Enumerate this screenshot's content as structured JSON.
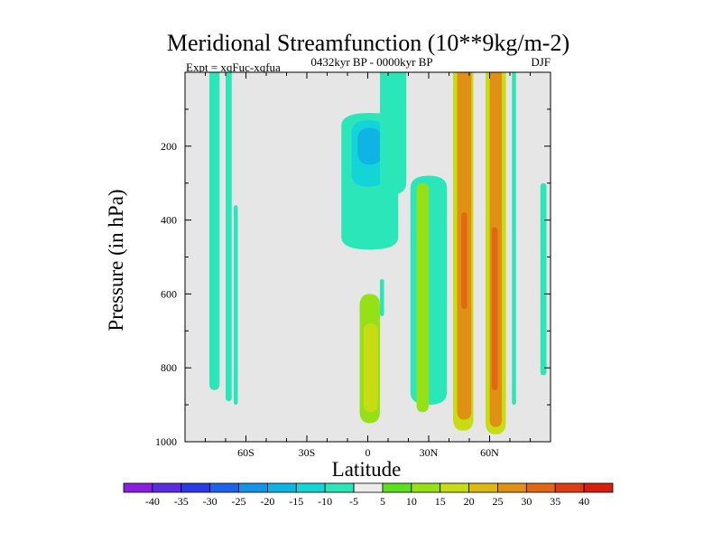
{
  "chart_data": {
    "type": "contour",
    "title": "Meridional Streamfunction (10**9kg/m-2)",
    "subtitle": "0432kyr BP - 0000kyr BP",
    "left_label": "Expt = xqFuc-xqfua",
    "right_label": "DJF",
    "xlabel": "Latitude",
    "ylabel": "Pressure (in hPa)",
    "xlim": [
      -90,
      90
    ],
    "ylim": [
      0,
      1000
    ],
    "y_inverted": true,
    "x_ticks": [
      {
        "value": -60,
        "label": "60S"
      },
      {
        "value": -30,
        "label": "30S"
      },
      {
        "value": 0,
        "label": "0"
      },
      {
        "value": 30,
        "label": "30N"
      },
      {
        "value": 60,
        "label": "60N"
      }
    ],
    "y_ticks": [
      {
        "value": 200,
        "label": "200"
      },
      {
        "value": 400,
        "label": "400"
      },
      {
        "value": 600,
        "label": "600"
      },
      {
        "value": 800,
        "label": "800"
      },
      {
        "value": 1000,
        "label": "1000"
      }
    ],
    "background_color": "#e6e6e6",
    "colorbar": {
      "labels": [
        "-40",
        "-35",
        "-30",
        "-25",
        "-20",
        "-15",
        "-10",
        "-5",
        "5",
        "10",
        "15",
        "20",
        "25",
        "30",
        "35",
        "40"
      ],
      "colors": [
        "#8a1fe0",
        "#5a2ee0",
        "#2a3ae6",
        "#1c63ea",
        "#1493e8",
        "#10b4e4",
        "#14d4d8",
        "#2ae6b8",
        "#ececec",
        "#5ae01e",
        "#96e016",
        "#c8dc14",
        "#e0b814",
        "#e09014",
        "#e06814",
        "#e03c12",
        "#d81e0e"
      ]
    },
    "features": [
      {
        "name": "cyan-band-72S",
        "level": "-5",
        "lat": [
          -78,
          -73
        ],
        "p_top": 0,
        "p_bottom": 860
      },
      {
        "name": "cyan-band-67S",
        "level": "-5",
        "lat": [
          -70,
          -67
        ],
        "p_top": 0,
        "p_bottom": 890
      },
      {
        "name": "cyan-band-64S",
        "level": "-5",
        "lat": [
          -66,
          -64
        ],
        "p_top": 360,
        "p_bottom": 900
      },
      {
        "name": "upper-cyan-lobe-eq",
        "level": "-5",
        "lat": [
          -13,
          15
        ],
        "p_top": 110,
        "p_bottom": 480
      },
      {
        "name": "mid-cyan-lobe-eq",
        "level": "-10",
        "lat": [
          -8,
          9
        ],
        "p_top": 130,
        "p_bottom": 310
      },
      {
        "name": "core-blue-eq",
        "level": "-15",
        "lat": [
          -5,
          7
        ],
        "p_top": 150,
        "p_bottom": 250
      },
      {
        "name": "cyan-top-eq",
        "level": "-5",
        "lat": [
          6,
          19
        ],
        "p_top": 0,
        "p_bottom": 330
      },
      {
        "name": "cyan-strip-eq",
        "level": "-5",
        "lat": [
          6,
          8
        ],
        "p_top": 560,
        "p_bottom": 660
      },
      {
        "name": "green-lobe-eq",
        "level": "10",
        "lat": [
          -4,
          6
        ],
        "p_top": 600,
        "p_bottom": 950
      },
      {
        "name": "green-lobe-eq-core",
        "level": "15",
        "lat": [
          -2,
          5
        ],
        "p_top": 680,
        "p_bottom": 920
      },
      {
        "name": "cyan-band-25N",
        "level": "-5",
        "lat": [
          21,
          39
        ],
        "p_top": 280,
        "p_bottom": 900
      },
      {
        "name": "green-band-27N",
        "level": "10",
        "lat": [
          24,
          30
        ],
        "p_top": 300,
        "p_bottom": 920
      },
      {
        "name": "yellow-band-45N",
        "level": "15",
        "lat": [
          42,
          52
        ],
        "p_top": 0,
        "p_bottom": 970
      },
      {
        "name": "yellow-band-45N-core",
        "level": "25",
        "lat": [
          44,
          51
        ],
        "p_top": 0,
        "p_bottom": 940
      },
      {
        "name": "orange-core-45N",
        "level": "30",
        "lat": [
          46,
          49
        ],
        "p_top": 380,
        "p_bottom": 640
      },
      {
        "name": "yellow-band-60N",
        "level": "15",
        "lat": [
          58,
          68
        ],
        "p_top": 0,
        "p_bottom": 980
      },
      {
        "name": "yellow-band-60N-core",
        "level": "25",
        "lat": [
          60,
          66
        ],
        "p_top": 0,
        "p_bottom": 960
      },
      {
        "name": "orange-core-60N",
        "level": "30",
        "lat": [
          61,
          64
        ],
        "p_top": 420,
        "p_bottom": 860
      },
      {
        "name": "cyan-band-72N",
        "level": "-5",
        "lat": [
          71,
          73
        ],
        "p_top": 0,
        "p_bottom": 900
      },
      {
        "name": "cyan-band-85N",
        "level": "-5",
        "lat": [
          85,
          88
        ],
        "p_top": 300,
        "p_bottom": 820
      }
    ]
  }
}
